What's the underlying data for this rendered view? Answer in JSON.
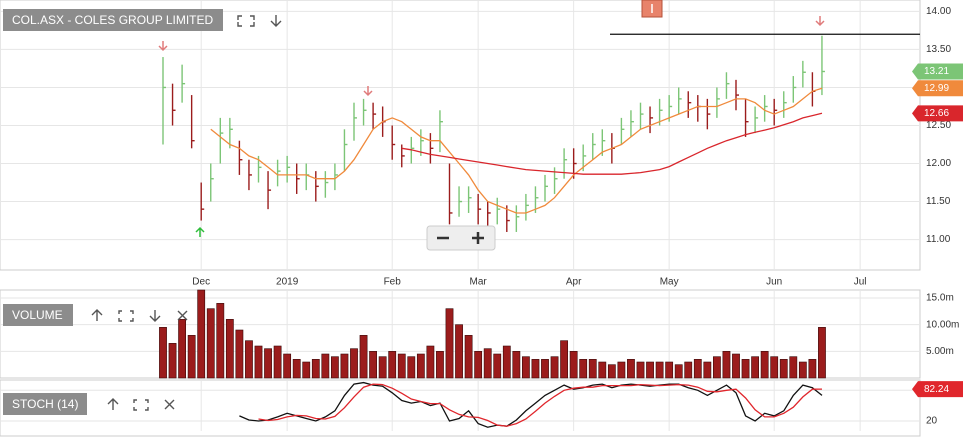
{
  "chart_data": [
    {
      "type": "ohlc",
      "title": "COL.ASX - COLES GROUP LIMITED",
      "categories": [
        null,
        null,
        null,
        null,
        "Dec",
        null,
        null,
        null,
        null,
        null,
        null,
        null,
        null,
        "2019",
        null,
        null,
        null,
        null,
        null,
        null,
        null,
        null,
        null,
        null,
        "Feb",
        null,
        null,
        null,
        null,
        null,
        null,
        null,
        null,
        "Mar",
        null,
        null,
        null,
        null,
        null,
        null,
        null,
        null,
        null,
        "Apr",
        null,
        null,
        null,
        null,
        null,
        null,
        null,
        null,
        null,
        "May",
        null,
        null,
        null,
        null,
        null,
        null,
        null,
        null,
        null,
        null,
        "Jun",
        null,
        null,
        null,
        null,
        null,
        null,
        null,
        null,
        "Jul",
        null,
        null,
        null,
        null,
        null
      ],
      "high": [
        13.4,
        13.05,
        13.3,
        12.9,
        11.75,
        12.0,
        12.6,
        12.6,
        12.3,
        12.05,
        12.1,
        11.9,
        12.05,
        12.1,
        12.0,
        12.0,
        11.9,
        11.9,
        12.0,
        12.45,
        12.8,
        12.85,
        12.8,
        12.75,
        12.5,
        12.25,
        12.35,
        12.45,
        12.4,
        12.7,
        12.0,
        11.7,
        11.7,
        11.6,
        11.5,
        11.55,
        11.45,
        11.45,
        11.6,
        11.7,
        11.85,
        11.95,
        12.2,
        12.2,
        12.25,
        12.4,
        12.45,
        12.4,
        12.6,
        12.7,
        12.8,
        12.75,
        12.85,
        12.9,
        13.0,
        12.95,
        12.9,
        12.85,
        13.0,
        13.2,
        13.1,
        12.85,
        12.75,
        12.9,
        12.85,
        12.95,
        13.15,
        13.35,
        13.2,
        13.68,
        null,
        null,
        null,
        null,
        null,
        null,
        null,
        null,
        null
      ],
      "low": [
        12.25,
        12.5,
        12.8,
        12.2,
        11.25,
        11.5,
        12.0,
        12.2,
        11.85,
        11.65,
        11.75,
        11.4,
        11.7,
        11.75,
        11.6,
        11.65,
        11.5,
        11.55,
        11.65,
        11.9,
        12.3,
        12.5,
        12.45,
        12.35,
        12.05,
        11.95,
        12.0,
        12.1,
        12.0,
        12.15,
        11.2,
        11.3,
        11.35,
        11.2,
        11.15,
        11.2,
        11.1,
        11.1,
        11.25,
        11.35,
        11.5,
        11.6,
        11.8,
        11.8,
        11.9,
        12.05,
        12.1,
        12.0,
        12.25,
        12.35,
        12.45,
        12.4,
        12.5,
        12.55,
        12.65,
        12.6,
        12.55,
        12.45,
        12.6,
        12.85,
        12.7,
        12.35,
        12.4,
        12.55,
        12.5,
        12.6,
        12.8,
        13.0,
        12.75,
        12.9,
        null,
        null,
        null,
        null,
        null,
        null,
        null,
        null,
        null
      ],
      "close": [
        13.0,
        12.7,
        13.05,
        12.3,
        11.4,
        11.8,
        12.4,
        12.45,
        12.05,
        11.85,
        11.95,
        11.65,
        11.9,
        11.95,
        11.8,
        11.85,
        11.7,
        11.75,
        11.85,
        12.25,
        12.6,
        12.7,
        12.65,
        12.55,
        12.25,
        12.1,
        12.2,
        12.3,
        12.2,
        12.55,
        11.35,
        11.5,
        11.55,
        11.4,
        11.35,
        11.4,
        11.25,
        11.3,
        11.45,
        11.55,
        11.7,
        11.8,
        12.05,
        12.0,
        12.1,
        12.25,
        12.3,
        12.2,
        12.45,
        12.55,
        12.65,
        12.6,
        12.7,
        12.75,
        12.85,
        12.8,
        12.75,
        12.65,
        12.85,
        13.05,
        12.9,
        12.55,
        12.6,
        12.75,
        12.7,
        12.8,
        13.0,
        13.2,
        12.95,
        13.21,
        null,
        null,
        null,
        null,
        null,
        null,
        null,
        null,
        null
      ],
      "up_color": "#7cc576",
      "down_color": "#9b1c1c",
      "overlays": [
        {
          "color": "#f08a3c",
          "values": [
            null,
            null,
            null,
            null,
            null,
            12.45,
            12.35,
            12.25,
            12.2,
            12.1,
            12.05,
            11.95,
            11.85,
            11.85,
            11.85,
            11.85,
            11.8,
            11.8,
            11.8,
            11.9,
            12.05,
            12.25,
            12.45,
            12.55,
            12.6,
            12.55,
            12.45,
            12.35,
            12.3,
            12.3,
            12.15,
            12.0,
            11.85,
            11.65,
            11.5,
            11.45,
            11.4,
            11.35,
            11.35,
            11.4,
            11.45,
            11.55,
            11.7,
            11.85,
            11.95,
            12.05,
            12.15,
            12.2,
            12.25,
            12.35,
            12.45,
            12.5,
            12.55,
            12.6,
            12.65,
            12.7,
            12.75,
            12.75,
            12.75,
            12.8,
            12.85,
            12.85,
            12.8,
            12.7,
            12.65,
            12.7,
            12.75,
            12.85,
            12.95,
            12.99,
            null,
            null,
            null,
            null,
            null,
            null,
            null,
            null,
            null
          ]
        },
        {
          "color": "#d9262c",
          "values": [
            null,
            null,
            null,
            null,
            null,
            null,
            null,
            null,
            null,
            null,
            null,
            null,
            null,
            null,
            null,
            null,
            null,
            null,
            null,
            null,
            null,
            null,
            null,
            null,
            null,
            12.2,
            12.18,
            12.15,
            12.12,
            12.1,
            12.08,
            12.06,
            12.04,
            12.02,
            12.0,
            11.98,
            11.96,
            11.94,
            11.92,
            11.91,
            11.9,
            11.89,
            11.88,
            11.87,
            11.86,
            11.86,
            11.86,
            11.86,
            11.86,
            11.87,
            11.88,
            11.9,
            11.92,
            11.96,
            12.02,
            12.08,
            12.14,
            12.2,
            12.25,
            12.3,
            12.34,
            12.38,
            12.41,
            12.44,
            12.47,
            12.51,
            12.55,
            12.6,
            12.63,
            12.66,
            null,
            null,
            null,
            null,
            null,
            null,
            null,
            null,
            null
          ]
        }
      ],
      "level": 13.7,
      "ylim": [
        10.6,
        14.15
      ],
      "yticks": [
        {
          "value": 11,
          "label": "11.00"
        },
        {
          "value": 11.5,
          "label": "11.50"
        },
        {
          "value": 12,
          "label": "12.00"
        },
        {
          "value": 12.5,
          "label": "12.50"
        },
        {
          "value": 13,
          "label": "13.00"
        },
        {
          "value": 13.5,
          "label": "13.50"
        },
        {
          "value": 14,
          "label": "14.00"
        }
      ],
      "grid": true
    },
    {
      "type": "bar",
      "title": "VOLUME",
      "color": "#9b1c1c",
      "values": [
        9500000,
        6500000,
        11000000,
        8000000,
        16500000,
        13000000,
        14000000,
        11000000,
        9000000,
        7000000,
        6000000,
        5500000,
        6000000,
        4500000,
        3500000,
        3000000,
        3500000,
        4500000,
        4000000,
        4500000,
        5500000,
        8000000,
        5000000,
        4000000,
        5000000,
        4500000,
        4000000,
        4500000,
        6000000,
        5000000,
        13000000,
        10000000,
        8000000,
        5000000,
        5500000,
        4500000,
        6000000,
        5000000,
        4000000,
        3500000,
        3500000,
        4000000,
        7000000,
        5000000,
        3500000,
        3500000,
        3000000,
        2500000,
        3000000,
        3500000,
        3000000,
        3000000,
        3000000,
        3000000,
        2500000,
        3000000,
        3500000,
        3000000,
        4000000,
        5000000,
        4500000,
        3500000,
        4000000,
        5000000,
        4000000,
        3500000,
        4000000,
        3000000,
        3500000,
        9500000
      ],
      "ylim": [
        0,
        16500000
      ],
      "yticks": [
        {
          "value": 5000000,
          "label": "5.00m"
        },
        {
          "value": 10000000,
          "label": "10.00m"
        },
        {
          "value": 15000000,
          "label": "15.0m"
        }
      ],
      "grid": true
    },
    {
      "type": "line",
      "title": "STOCH (14)",
      "series": [
        {
          "color": "#111111",
          "values": [
            null,
            null,
            null,
            null,
            null,
            null,
            null,
            null,
            30,
            22,
            20,
            22,
            28,
            35,
            30,
            25,
            20,
            28,
            40,
            70,
            92,
            95,
            90,
            88,
            75,
            60,
            55,
            58,
            50,
            55,
            20,
            25,
            40,
            15,
            8,
            12,
            10,
            22,
            40,
            55,
            70,
            80,
            90,
            82,
            85,
            90,
            92,
            85,
            90,
            92,
            90,
            88,
            90,
            92,
            92,
            85,
            80,
            70,
            80,
            90,
            75,
            30,
            20,
            35,
            30,
            40,
            70,
            90,
            85,
            70
          ]
        },
        {
          "color": "#e0262c",
          "values": [
            null,
            null,
            null,
            null,
            null,
            null,
            null,
            null,
            null,
            null,
            24,
            21,
            23,
            28,
            31,
            30,
            25,
            24,
            29,
            46,
            67,
            86,
            92,
            91,
            84,
            74,
            63,
            58,
            54,
            54,
            42,
            33,
            28,
            27,
            21,
            12,
            10,
            15,
            24,
            39,
            55,
            68,
            80,
            84,
            86,
            86,
            89,
            89,
            89,
            89,
            91,
            90,
            89,
            90,
            91,
            90,
            86,
            78,
            77,
            80,
            82,
            65,
            42,
            28,
            28,
            35,
            47,
            67,
            82,
            82.24
          ]
        }
      ],
      "ylim": [
        0,
        100
      ],
      "yticks": [
        20,
        80
      ],
      "grid": true
    }
  ]
}
